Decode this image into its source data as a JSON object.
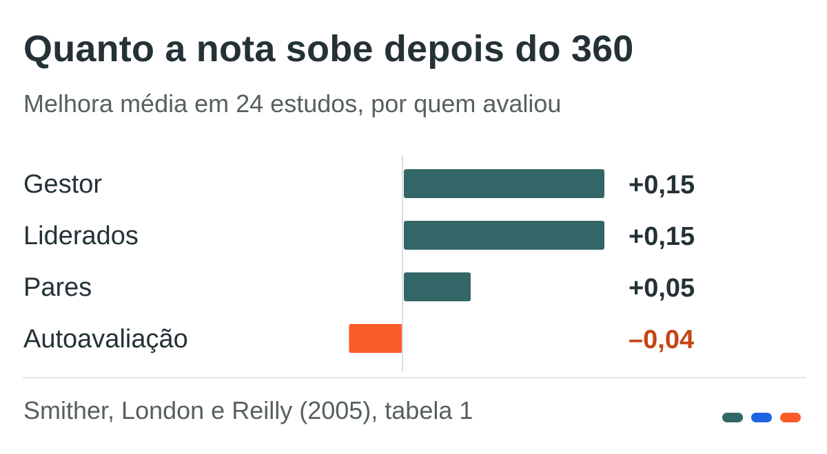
{
  "title": "Quanto a nota sobe depois do 360",
  "subtitle": "Melhora média em 24 estudos, por quem avaliou",
  "source": "Smither, London e Reilly (2005), tabela 1",
  "colors": {
    "positive": "#336666",
    "negative": "#fa5c28",
    "positive_text": "#243236",
    "negative_text": "#c44514",
    "axis": "#d9dede"
  },
  "brand_dots": [
    "#336666",
    "#1f63e0",
    "#fa5c28"
  ],
  "chart_data": {
    "type": "bar",
    "orientation": "horizontal",
    "categories": [
      "Gestor",
      "Liderados",
      "Pares",
      "Autoavaliação"
    ],
    "values": [
      0.15,
      0.15,
      0.05,
      -0.04
    ],
    "value_labels": [
      "+0,15",
      "+0,15",
      "+0,05",
      "–0,04"
    ],
    "xlim": [
      -0.04,
      0.15
    ],
    "grid": false,
    "legend": "none"
  }
}
